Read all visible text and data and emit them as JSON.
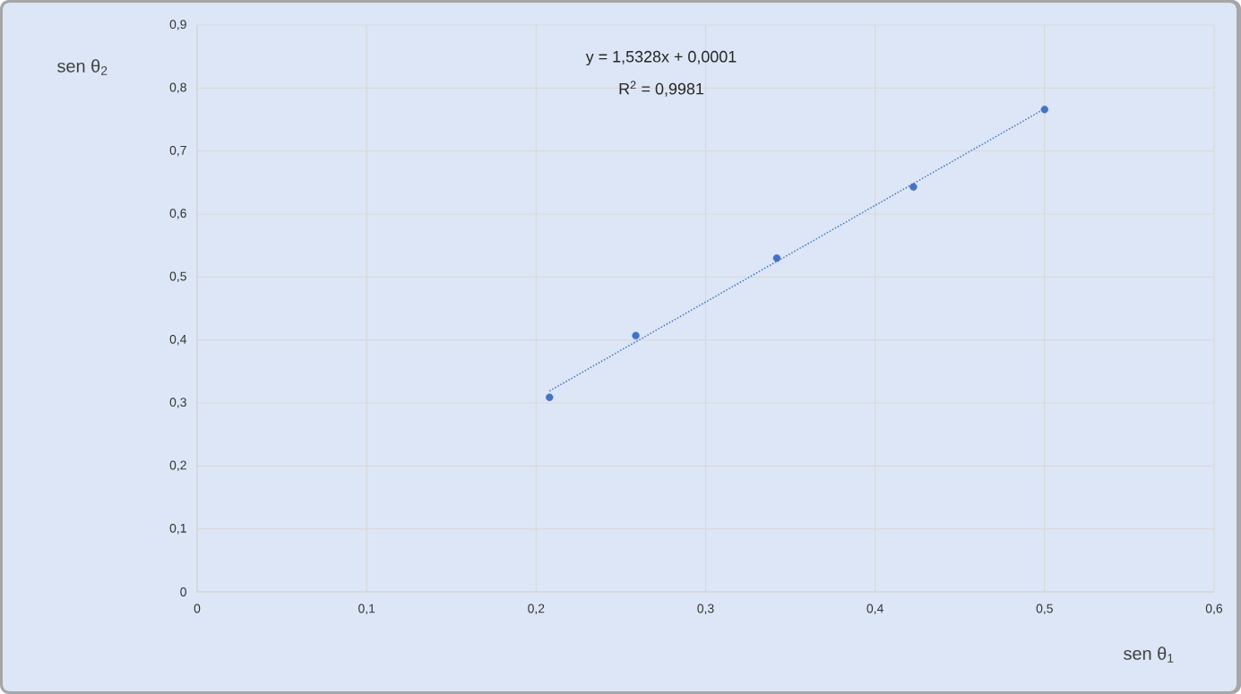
{
  "chart_data": {
    "type": "scatter",
    "xlabel": "sen θ$_{1}$",
    "ylabel": "sen θ$_{2}$",
    "annotations": [
      "y = 1,5328x + 0,0001",
      "R$^{2}$ = 0,9981"
    ],
    "xlim": [
      0,
      0.6
    ],
    "ylim": [
      0,
      0.9
    ],
    "xticks": [
      0,
      {
        "value": 0.1,
        "label": "0,1"
      },
      {
        "value": 0.2,
        "label": "0,2"
      },
      {
        "value": 0.3,
        "label": "0,3"
      },
      {
        "value": 0.4,
        "label": "0,4"
      },
      {
        "value": 0.5,
        "label": "0,5"
      },
      {
        "value": 0.6,
        "label": "0,6"
      }
    ],
    "yticks": [
      0,
      {
        "value": 0.1,
        "label": "0,1"
      },
      {
        "value": 0.2,
        "label": "0,2"
      },
      {
        "value": 0.3,
        "label": "0,3"
      },
      {
        "value": 0.4,
        "label": "0,4"
      },
      {
        "value": 0.5,
        "label": "0,5"
      },
      {
        "value": 0.6,
        "label": "0,6"
      },
      {
        "value": 0.7,
        "label": "0,7"
      },
      {
        "value": 0.8,
        "label": "0,8"
      },
      {
        "value": 0.9,
        "label": "0,9"
      }
    ],
    "grid": true,
    "series": [
      {
        "marker": "circle",
        "color": "#4472c4",
        "x": [
          0.2079,
          0.2588,
          0.342,
          0.4226,
          0.5
        ],
        "values": [
          0.309,
          0.407,
          0.53,
          0.643,
          0.766
        ]
      },
      {
        "type": "line",
        "marker": "none",
        "line_style": "dotted",
        "color": "#4472c4",
        "x": [
          0.2079,
          0.5
        ],
        "values": [
          0.319,
          0.767
        ]
      }
    ]
  }
}
